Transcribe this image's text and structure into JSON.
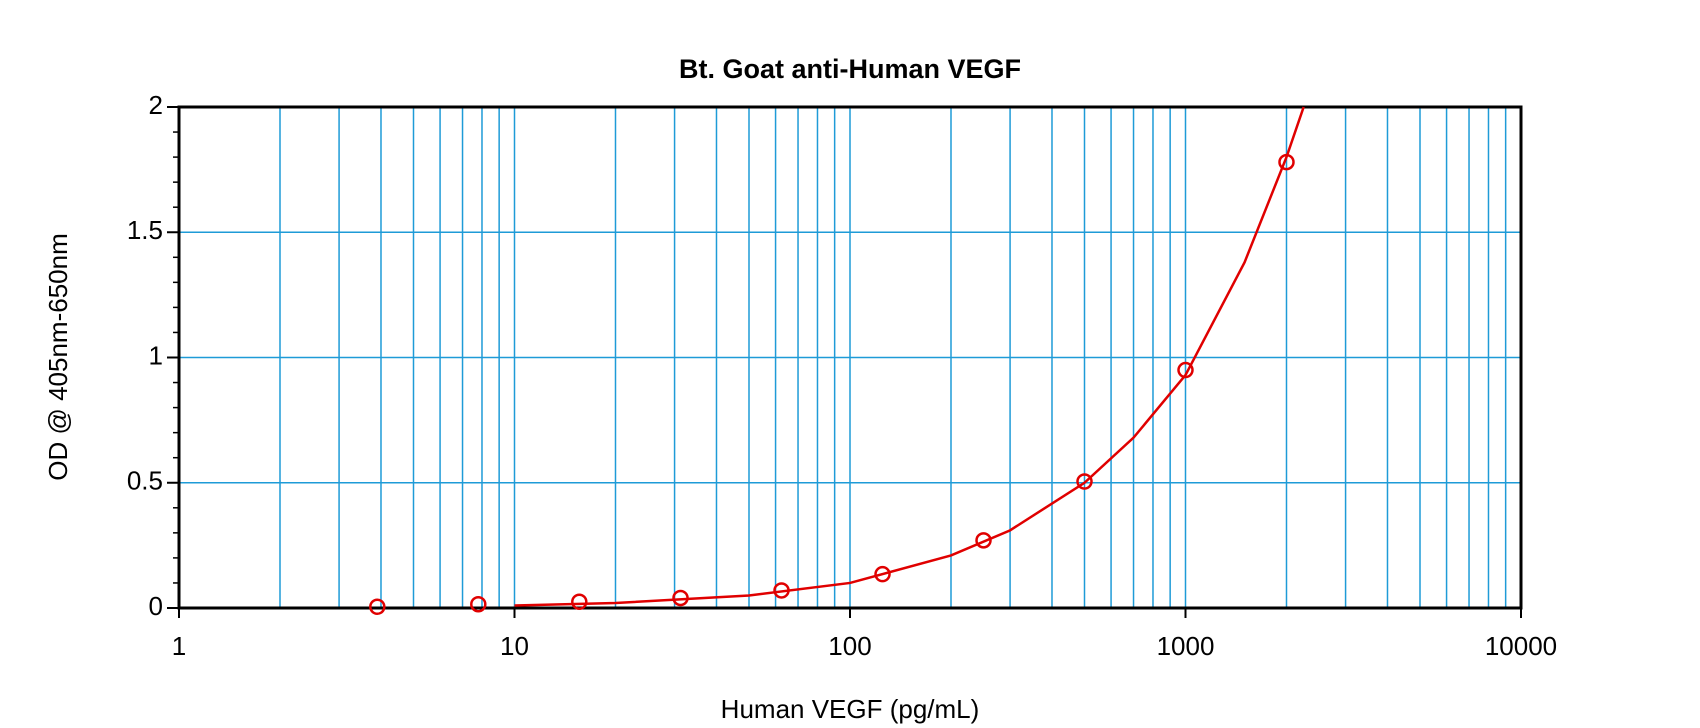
{
  "chart_data": {
    "type": "scatter",
    "title": "Bt. Goat anti-Human VEGF",
    "x_label": "Human VEGF (pg/mL)",
    "y_label": "OD @ 405nm-650nm",
    "xscale": "log",
    "xlim": [
      1,
      10000
    ],
    "xticks": [
      1,
      10,
      100,
      1000,
      10000
    ],
    "xminorticks": [
      2,
      3,
      4,
      5,
      6,
      7,
      8,
      9,
      20,
      30,
      40,
      50,
      60,
      70,
      80,
      90,
      200,
      300,
      400,
      500,
      600,
      700,
      800,
      900,
      2000,
      3000,
      4000,
      5000,
      6000,
      7000,
      8000,
      9000
    ],
    "ylim": [
      0,
      2
    ],
    "yticks": [
      0,
      0.5,
      1,
      1.5,
      2
    ],
    "yminorticks": [
      0.1,
      0.2,
      0.3,
      0.4,
      0.6,
      0.7,
      0.8,
      0.9,
      1.1,
      1.2,
      1.3,
      1.4,
      1.6,
      1.7,
      1.8,
      1.9
    ],
    "grid": true,
    "grid_color": "#1e9bd7",
    "series": [
      {
        "style": "markers",
        "color": "#e00000",
        "x": [
          3.9,
          7.8,
          15.6,
          31.25,
          62.5,
          125,
          250,
          500,
          1000,
          2000
        ],
        "values": [
          0.005,
          0.015,
          0.025,
          0.04,
          0.07,
          0.135,
          0.27,
          0.505,
          0.95,
          1.78
        ]
      },
      {
        "style": "line",
        "color": "#e00000",
        "x": [
          10,
          20,
          50,
          100,
          200,
          300,
          500,
          700,
          1000,
          1500,
          2000,
          2250
        ],
        "values": [
          0.01,
          0.02,
          0.05,
          0.1,
          0.21,
          0.31,
          0.5,
          0.68,
          0.93,
          1.38,
          1.8,
          2.0
        ]
      }
    ]
  }
}
